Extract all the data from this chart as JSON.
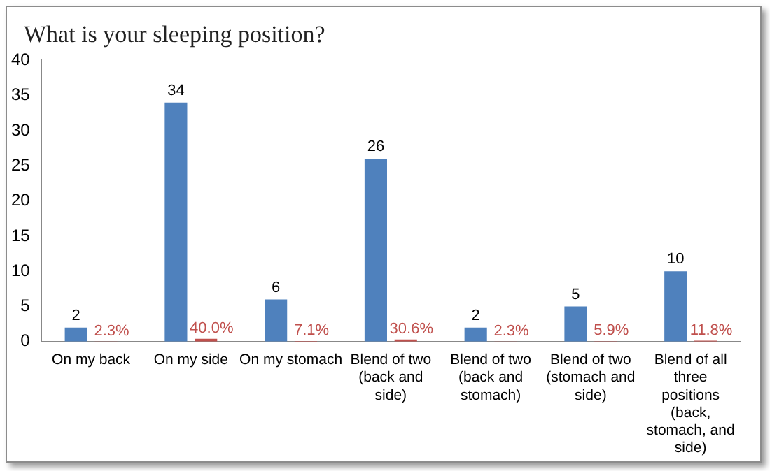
{
  "chart_data": {
    "type": "bar",
    "title": "What is your sleeping position?",
    "categories": [
      "On my back",
      "On my side",
      "On my stomach",
      "Blend of two (back and side)",
      "Blend of two (back and stomach)",
      "Blend of two (stomach and side)",
      "Blend of all three positions (back, stomach, and side)"
    ],
    "series": [
      {
        "color": "#4f81bd",
        "values": [
          2,
          34,
          6,
          26,
          2,
          5,
          10
        ],
        "value_labels": [
          "2",
          "34",
          "6",
          "26",
          "2",
          "5",
          "10"
        ]
      },
      {
        "color": "#c0504d",
        "values": [
          0.023,
          0.4,
          0.071,
          0.306,
          0.023,
          0.059,
          0.118
        ],
        "value_labels": [
          "2.3%",
          "40.0%",
          "7.1%",
          "30.6%",
          "2.3%",
          "5.9%",
          "11.8%"
        ]
      }
    ],
    "ylim": [
      0,
      40
    ],
    "yticks": [
      0,
      5,
      10,
      15,
      20,
      25,
      30,
      35,
      40
    ],
    "legend": false
  }
}
